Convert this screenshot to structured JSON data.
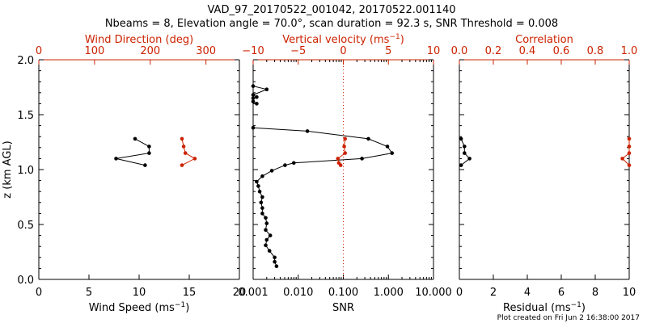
{
  "title_line1": "VAD_97_20170522_001042, 20170522.001140",
  "title_line2": "Nbeams = 8, Elevation angle = 70.0°, scan duration = 92.3 s, SNR Threshold = 0.008",
  "credit": "Plot created on Fri Jun  2 16:38:00 2017",
  "colors": {
    "axis": "#000000",
    "secondary": "#cc2200"
  },
  "chart_data": [
    {
      "type": "scatter",
      "title": "",
      "ylabel": "z (km AGL)",
      "ylim": [
        0,
        2
      ],
      "yticks": [
        "0.0",
        "0.5",
        "1.0",
        "1.5",
        "2.0"
      ],
      "bottom_axis": {
        "label": "Wind Speed (ms",
        "label_sup": "−1",
        "label_end": ")",
        "lim": [
          0,
          20
        ],
        "ticks": [
          "0",
          "5",
          "10",
          "15",
          "20"
        ],
        "color": "#000000"
      },
      "top_axis": {
        "label": "Wind Direction (deg)",
        "lim": [
          0,
          360
        ],
        "ticks": [
          "0",
          "100",
          "200",
          "300"
        ],
        "color": "#cc2200"
      },
      "series": [
        {
          "axis": "bottom",
          "color": "#000000",
          "points": [
            [
              9.6,
              1.28
            ],
            [
              11.0,
              1.21
            ],
            [
              11.0,
              1.15
            ],
            [
              7.7,
              1.1
            ],
            [
              10.6,
              1.04
            ]
          ]
        },
        {
          "axis": "top",
          "color": "#cc2200",
          "points": [
            [
              257,
              1.28
            ],
            [
              260,
              1.21
            ],
            [
              263,
              1.15
            ],
            [
              280,
              1.1
            ],
            [
              257,
              1.04
            ]
          ]
        }
      ]
    },
    {
      "type": "line",
      "title": "",
      "ylim": [
        0,
        2
      ],
      "bottom_axis": {
        "label": "SNR",
        "lim": [
          0.001,
          10
        ],
        "scale": "log",
        "ticks": [
          "0.001",
          "0.010",
          "0.100",
          "1.000",
          "10.000"
        ],
        "color": "#000000"
      },
      "top_axis": {
        "label": "Vertical velocity (ms",
        "label_sup": "−1",
        "label_end": ")",
        "lim": [
          -10,
          10
        ],
        "ticks": [
          "−10",
          "−5",
          "0",
          "5",
          "10"
        ],
        "color": "#cc2200"
      },
      "reference_line": {
        "axis": "top",
        "value": 0,
        "style": "dotted",
        "color": "#cc2200"
      },
      "series": [
        {
          "axis": "bottom",
          "color": "#000000",
          "points": [
            [
              0.0033,
              0.12
            ],
            [
              0.003,
              0.16
            ],
            [
              0.003,
              0.2
            ],
            [
              0.0023,
              0.26
            ],
            [
              0.0019,
              0.31
            ],
            [
              0.002,
              0.36
            ],
            [
              0.0024,
              0.4
            ],
            [
              0.0019,
              0.45
            ],
            [
              0.002,
              0.51
            ],
            [
              0.0019,
              0.56
            ],
            [
              0.0016,
              0.6
            ],
            [
              0.0016,
              0.65
            ],
            [
              0.0015,
              0.7
            ],
            [
              0.0016,
              0.75
            ],
            [
              0.0014,
              0.8
            ],
            [
              0.0013,
              0.85
            ],
            [
              0.0012,
              0.89
            ],
            [
              0.0016,
              0.94
            ],
            [
              0.0026,
              0.99
            ],
            [
              0.0051,
              1.04
            ],
            [
              0.008,
              1.06
            ],
            [
              0.26,
              1.1
            ],
            [
              1.2,
              1.15
            ],
            [
              0.95,
              1.21
            ],
            [
              0.36,
              1.28
            ],
            [
              0.016,
              1.35
            ],
            [
              0.001,
              1.38
            ]
          ]
        },
        {
          "axis": "bottom",
          "color": "#000000",
          "points": [
            [
              0.0012,
              1.6
            ],
            [
              0.001,
              1.62
            ],
            [
              0.001,
              1.65
            ],
            [
              0.0012,
              1.66
            ],
            [
              0.001,
              1.68
            ],
            [
              0.002,
              1.73
            ],
            [
              0.001,
              1.76
            ]
          ]
        },
        {
          "axis": "top",
          "color": "#cc2200",
          "points": [
            [
              -0.3,
              1.04
            ],
            [
              -0.5,
              1.06
            ],
            [
              -0.6,
              1.1
            ],
            [
              0.2,
              1.15
            ],
            [
              0.1,
              1.21
            ],
            [
              0.2,
              1.28
            ]
          ]
        }
      ]
    },
    {
      "type": "line",
      "title": "",
      "ylim": [
        0,
        2
      ],
      "bottom_axis": {
        "label": "Residual (ms",
        "label_sup": "−1",
        "label_end": ")",
        "lim": [
          0,
          10
        ],
        "ticks": [
          "0",
          "2",
          "4",
          "6",
          "8",
          "10"
        ],
        "color": "#000000"
      },
      "top_axis": {
        "label": "Correlation",
        "lim": [
          0,
          1
        ],
        "ticks": [
          "0.0",
          "0.2",
          "0.4",
          "0.6",
          "0.8",
          "1.0"
        ],
        "color": "#cc2200"
      },
      "series": [
        {
          "axis": "bottom",
          "color": "#000000",
          "points": [
            [
              0.1,
              1.28
            ],
            [
              0.3,
              1.21
            ],
            [
              0.3,
              1.15
            ],
            [
              0.6,
              1.1
            ],
            [
              0.1,
              1.04
            ]
          ]
        },
        {
          "axis": "top",
          "color": "#cc2200",
          "points": [
            [
              1.0,
              1.28
            ],
            [
              1.0,
              1.21
            ],
            [
              1.0,
              1.15
            ],
            [
              0.96,
              1.1
            ],
            [
              1.0,
              1.04
            ]
          ]
        }
      ]
    }
  ]
}
